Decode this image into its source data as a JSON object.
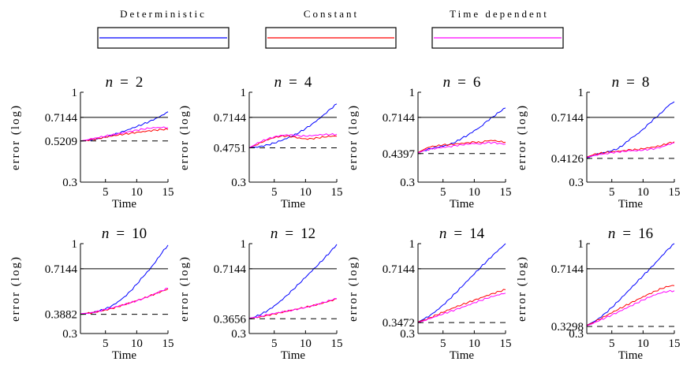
{
  "legend": [
    {
      "label": "Deterministic",
      "color": "#0000ff"
    },
    {
      "label": "Constant",
      "color": "#ff0000"
    },
    {
      "label": "Time dependent",
      "color": "#ff00ff"
    }
  ],
  "chart_data": [
    {
      "type": "line",
      "title_var": "n",
      "title_eq": "=",
      "title_num": "2",
      "xlabel": "Time",
      "ylabel": "error (log)",
      "log_y": true,
      "xlim": [
        1,
        15
      ],
      "ylim": [
        0.3,
        1
      ],
      "xticks": [
        5,
        10,
        15
      ],
      "yticks": [
        0.3,
        0.5209,
        0.7144,
        1
      ],
      "y_tick_labels": [
        "0.3",
        "0.5209",
        "0.7144",
        "1"
      ],
      "solid_ref": 0.7144,
      "dashed_ref": 0.5209,
      "x": [
        1,
        2,
        3,
        4,
        5,
        6,
        7,
        8,
        9,
        10,
        11,
        12,
        13,
        14,
        15
      ],
      "series": [
        {
          "color": "#0000ff",
          "values": [
            0.521,
            0.525,
            0.532,
            0.54,
            0.55,
            0.562,
            0.576,
            0.592,
            0.61,
            0.63,
            0.652,
            0.676,
            0.704,
            0.735,
            0.77
          ]
        },
        {
          "color": "#ff0000",
          "values": [
            0.521,
            0.526,
            0.532,
            0.538,
            0.546,
            0.554,
            0.562,
            0.57,
            0.578,
            0.586,
            0.592,
            0.598,
            0.603,
            0.606,
            0.608
          ]
        },
        {
          "color": "#ff00ff",
          "values": [
            0.521,
            0.528,
            0.536,
            0.545,
            0.555,
            0.565,
            0.575,
            0.585,
            0.594,
            0.603,
            0.61,
            0.616,
            0.62,
            0.622,
            0.622
          ]
        }
      ]
    },
    {
      "type": "line",
      "title_var": "n",
      "title_eq": "=",
      "title_num": "4",
      "xlabel": "Time",
      "ylabel": "error (log)",
      "log_y": true,
      "xlim": [
        1,
        15
      ],
      "ylim": [
        0.3,
        1
      ],
      "xticks": [
        5,
        10,
        15
      ],
      "yticks": [
        0.3,
        0.4751,
        0.7144,
        1
      ],
      "y_tick_labels": [
        "0.3",
        "0.4751",
        "0.7144",
        "1"
      ],
      "solid_ref": 0.7144,
      "dashed_ref": 0.4751,
      "x": [
        1,
        2,
        3,
        4,
        5,
        6,
        7,
        8,
        9,
        10,
        11,
        12,
        13,
        14,
        15
      ],
      "series": [
        {
          "color": "#0000ff",
          "values": [
            0.476,
            0.48,
            0.487,
            0.495,
            0.506,
            0.52,
            0.537,
            0.557,
            0.583,
            0.615,
            0.652,
            0.695,
            0.745,
            0.8,
            0.855
          ]
        },
        {
          "color": "#ff0000",
          "values": [
            0.476,
            0.492,
            0.51,
            0.528,
            0.543,
            0.553,
            0.557,
            0.552,
            0.543,
            0.537,
            0.538,
            0.543,
            0.548,
            0.552,
            0.555
          ]
        },
        {
          "color": "#ff00ff",
          "values": [
            0.476,
            0.497,
            0.518,
            0.536,
            0.551,
            0.562,
            0.567,
            0.565,
            0.558,
            0.555,
            0.557,
            0.562,
            0.566,
            0.568,
            0.57
          ]
        }
      ]
    },
    {
      "type": "line",
      "title_var": "n",
      "title_eq": "=",
      "title_num": "6",
      "xlabel": "Time",
      "ylabel": "error (log)",
      "log_y": true,
      "xlim": [
        1,
        15
      ],
      "ylim": [
        0.3,
        1
      ],
      "xticks": [
        5,
        10,
        15
      ],
      "yticks": [
        0.3,
        0.4397,
        0.7144,
        1
      ],
      "y_tick_labels": [
        "0.3",
        "0.4397",
        "0.7144",
        "1"
      ],
      "solid_ref": 0.7144,
      "dashed_ref": 0.4397,
      "x": [
        1,
        2,
        3,
        4,
        5,
        6,
        7,
        8,
        9,
        10,
        11,
        12,
        13,
        14,
        15
      ],
      "series": [
        {
          "color": "#0000ff",
          "values": [
            0.444,
            0.458,
            0.47,
            0.476,
            0.484,
            0.495,
            0.512,
            0.54,
            0.565,
            0.6,
            0.63,
            0.68,
            0.72,
            0.765,
            0.81
          ]
        },
        {
          "color": "#ff0000",
          "values": [
            0.446,
            0.466,
            0.48,
            0.486,
            0.494,
            0.496,
            0.502,
            0.506,
            0.51,
            0.514,
            0.509,
            0.52,
            0.522,
            0.516,
            0.512
          ]
        },
        {
          "color": "#ff00ff",
          "values": [
            0.444,
            0.458,
            0.468,
            0.474,
            0.48,
            0.484,
            0.49,
            0.494,
            0.498,
            0.502,
            0.498,
            0.508,
            0.51,
            0.505,
            0.5
          ]
        }
      ]
    },
    {
      "type": "line",
      "title_var": "n",
      "title_eq": "=",
      "title_num": "8",
      "xlabel": "Time",
      "ylabel": "error (log)",
      "log_y": true,
      "xlim": [
        1,
        15
      ],
      "ylim": [
        0.3,
        1
      ],
      "xticks": [
        5,
        10,
        15
      ],
      "yticks": [
        0.3,
        0.4126,
        0.7144,
        1
      ],
      "y_tick_labels": [
        "0.3",
        "0.4126",
        "0.7144",
        "1"
      ],
      "solid_ref": 0.7144,
      "dashed_ref": 0.4126,
      "x": [
        1,
        2,
        3,
        4,
        5,
        6,
        7,
        8,
        9,
        10,
        11,
        12,
        13,
        14,
        15
      ],
      "series": [
        {
          "color": "#0000ff",
          "values": [
            0.414,
            0.428,
            0.438,
            0.446,
            0.456,
            0.47,
            0.5,
            0.54,
            0.57,
            0.61,
            0.66,
            0.71,
            0.76,
            0.83,
            0.88
          ]
        },
        {
          "color": "#ff0000",
          "values": [
            0.42,
            0.432,
            0.44,
            0.446,
            0.452,
            0.455,
            0.459,
            0.464,
            0.463,
            0.468,
            0.474,
            0.48,
            0.49,
            0.505,
            0.515
          ]
        },
        {
          "color": "#ff00ff",
          "values": [
            0.418,
            0.428,
            0.436,
            0.44,
            0.446,
            0.449,
            0.452,
            0.456,
            0.455,
            0.46,
            0.466,
            0.472,
            0.482,
            0.498,
            0.508
          ]
        }
      ]
    },
    {
      "type": "line",
      "title_var": "n",
      "title_eq": "=",
      "title_num": "10",
      "xlabel": "Time",
      "ylabel": "error (log)",
      "log_y": true,
      "xlim": [
        1,
        15
      ],
      "ylim": [
        0.3,
        1
      ],
      "xticks": [
        5,
        10,
        15
      ],
      "yticks": [
        0.3,
        0.3882,
        0.7144,
        1
      ],
      "y_tick_labels": [
        "0.3",
        "0.3882",
        "0.7144",
        "1"
      ],
      "solid_ref": 0.7144,
      "dashed_ref": 0.3882,
      "x": [
        1,
        2,
        3,
        4,
        5,
        6,
        7,
        8,
        9,
        10,
        11,
        12,
        13,
        14,
        15
      ],
      "series": [
        {
          "color": "#0000ff",
          "values": [
            0.39,
            0.392,
            0.396,
            0.405,
            0.418,
            0.435,
            0.46,
            0.49,
            0.53,
            0.58,
            0.64,
            0.7,
            0.78,
            0.88,
            0.98
          ]
        },
        {
          "color": "#ff0000",
          "values": [
            0.39,
            0.393,
            0.398,
            0.405,
            0.412,
            0.42,
            0.43,
            0.44,
            0.452,
            0.465,
            0.478,
            0.495,
            0.512,
            0.53,
            0.545
          ]
        },
        {
          "color": "#ff00ff",
          "values": [
            0.391,
            0.394,
            0.399,
            0.406,
            0.413,
            0.421,
            0.431,
            0.441,
            0.453,
            0.466,
            0.48,
            0.497,
            0.514,
            0.533,
            0.55
          ]
        }
      ]
    },
    {
      "type": "line",
      "title_var": "n",
      "title_eq": "=",
      "title_num": "12",
      "xlabel": "Time",
      "ylabel": "error (log)",
      "log_y": true,
      "xlim": [
        1,
        15
      ],
      "ylim": [
        0.3,
        1
      ],
      "xticks": [
        5,
        10,
        15
      ],
      "yticks": [
        0.3,
        0.3656,
        0.7144,
        1
      ],
      "y_tick_labels": [
        "0.3",
        "0.3656",
        "0.7144",
        "1"
      ],
      "solid_ref": 0.7144,
      "dashed_ref": 0.3656,
      "x": [
        1,
        2,
        3,
        4,
        5,
        6,
        7,
        8,
        9,
        10,
        11,
        12,
        13,
        14,
        15
      ],
      "series": [
        {
          "color": "#0000ff",
          "values": [
            0.366,
            0.375,
            0.39,
            0.41,
            0.435,
            0.465,
            0.5,
            0.54,
            0.585,
            0.635,
            0.69,
            0.75,
            0.82,
            0.9,
            0.99
          ]
        },
        {
          "color": "#ff0000",
          "values": [
            0.368,
            0.372,
            0.378,
            0.384,
            0.39,
            0.396,
            0.403,
            0.41,
            0.418,
            0.426,
            0.435,
            0.445,
            0.455,
            0.466,
            0.478
          ]
        },
        {
          "color": "#ff00ff",
          "values": [
            0.369,
            0.373,
            0.379,
            0.385,
            0.391,
            0.397,
            0.404,
            0.411,
            0.419,
            0.427,
            0.436,
            0.446,
            0.456,
            0.467,
            0.479
          ]
        }
      ]
    },
    {
      "type": "line",
      "title_var": "n",
      "title_eq": "=",
      "title_num": "14",
      "xlabel": "Time",
      "ylabel": "error (log)",
      "log_y": true,
      "xlim": [
        1,
        15
      ],
      "ylim": [
        0.3,
        1
      ],
      "xticks": [
        5,
        10,
        15
      ],
      "yticks": [
        0.3,
        0.3472,
        0.7144,
        1
      ],
      "y_tick_labels": [
        "0.3",
        "0.3472",
        "0.7144",
        "1"
      ],
      "solid_ref": 0.7144,
      "dashed_ref": 0.3472,
      "x": [
        1,
        2,
        3,
        4,
        5,
        6,
        7,
        8,
        9,
        10,
        11,
        12,
        13,
        14,
        15
      ],
      "series": [
        {
          "color": "#0000ff",
          "values": [
            0.35,
            0.365,
            0.385,
            0.41,
            0.44,
            0.475,
            0.515,
            0.56,
            0.61,
            0.665,
            0.725,
            0.79,
            0.86,
            0.93,
            1.0
          ]
        },
        {
          "color": "#ff0000",
          "values": [
            0.35,
            0.36,
            0.372,
            0.385,
            0.398,
            0.412,
            0.426,
            0.44,
            0.455,
            0.47,
            0.485,
            0.5,
            0.514,
            0.527,
            0.54
          ]
        },
        {
          "color": "#ff00ff",
          "values": [
            0.348,
            0.356,
            0.366,
            0.377,
            0.389,
            0.401,
            0.414,
            0.427,
            0.44,
            0.454,
            0.467,
            0.48,
            0.492,
            0.503,
            0.515
          ]
        }
      ]
    },
    {
      "type": "line",
      "title_var": "n",
      "title_eq": "=",
      "title_num": "16",
      "xlabel": "Time",
      "ylabel": "error (log)",
      "log_y": true,
      "xlim": [
        1,
        15
      ],
      "ylim": [
        0.3,
        1
      ],
      "xticks": [
        5,
        10,
        15
      ],
      "yticks": [
        0.3,
        0.3298,
        0.7144,
        1
      ],
      "y_tick_labels": [
        "0.3",
        "0.3298",
        "0.7144",
        "1"
      ],
      "solid_ref": 0.7144,
      "dashed_ref": 0.3298,
      "x": [
        1,
        2,
        3,
        4,
        5,
        6,
        7,
        8,
        9,
        10,
        11,
        12,
        13,
        14,
        15
      ],
      "series": [
        {
          "color": "#0000ff",
          "values": [
            0.335,
            0.35,
            0.37,
            0.395,
            0.425,
            0.46,
            0.5,
            0.545,
            0.595,
            0.65,
            0.71,
            0.775,
            0.85,
            0.93,
            1.0
          ]
        },
        {
          "color": "#ff0000",
          "values": [
            0.335,
            0.347,
            0.362,
            0.378,
            0.395,
            0.413,
            0.432,
            0.452,
            0.472,
            0.492,
            0.512,
            0.53,
            0.548,
            0.562,
            0.57
          ]
        },
        {
          "color": "#ff00ff",
          "values": [
            0.333,
            0.343,
            0.356,
            0.37,
            0.385,
            0.401,
            0.418,
            0.435,
            0.452,
            0.47,
            0.487,
            0.503,
            0.517,
            0.527,
            0.532
          ]
        }
      ]
    }
  ]
}
